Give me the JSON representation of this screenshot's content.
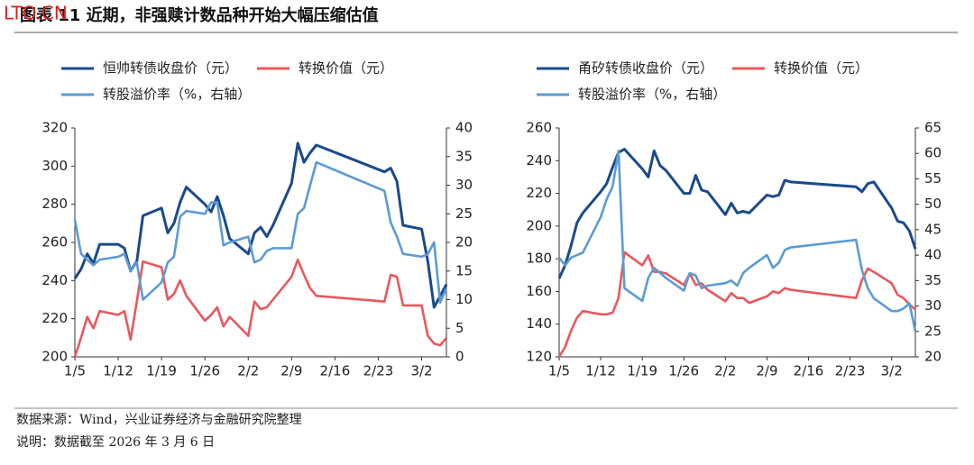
{
  "header": {
    "title": "图表 11  近期，非强赎计数品种开始大幅压缩估值",
    "watermark": "LTO.CN"
  },
  "chart_data": [
    {
      "type": "line",
      "x": [
        "1/5",
        "1/6",
        "1/7",
        "1/8",
        "1/9",
        "1/12",
        "1/13",
        "1/14",
        "1/15",
        "1/16",
        "1/19",
        "1/20",
        "1/21",
        "1/22",
        "1/23",
        "1/26",
        "1/27",
        "1/28",
        "1/29",
        "1/30",
        "2/2",
        "2/3",
        "2/4",
        "2/5",
        "2/6",
        "2/9",
        "2/10",
        "2/11",
        "2/12",
        "2/13",
        "2/24",
        "2/25",
        "2/26",
        "2/27",
        "3/2",
        "3/3",
        "3/4",
        "3/5",
        "3/6"
      ],
      "xlim": [
        "1/5",
        "3/6"
      ],
      "xticks": [
        "1/5",
        "1/12",
        "1/19",
        "1/26",
        "2/2",
        "2/9",
        "2/16",
        "2/23",
        "3/2"
      ],
      "ylim": [
        200,
        320
      ],
      "yticks": [
        200,
        220,
        240,
        260,
        280,
        300,
        320
      ],
      "y2lim": [
        0,
        40
      ],
      "y2ticks": [
        0,
        5,
        10,
        15,
        20,
        25,
        30,
        35,
        40
      ],
      "series": [
        {
          "name": "恒帅转债收盘价（元）",
          "color": "#1a4a8d",
          "values": [
            241,
            246,
            254,
            249,
            259,
            259,
            257,
            245,
            250,
            274,
            278,
            265,
            270,
            281,
            289,
            280,
            276,
            284,
            274,
            262,
            254,
            265,
            268,
            263,
            269,
            291,
            312,
            302,
            307,
            311,
            297,
            299,
            292,
            269,
            267,
            250,
            226,
            232,
            238
          ]
        },
        {
          "name": "转换价值（元）",
          "color": "#e8585d",
          "values": [
            200,
            210,
            221,
            215,
            224,
            222,
            224,
            209,
            229,
            250,
            247,
            230,
            233,
            240,
            232,
            219,
            222,
            226,
            216,
            221,
            211,
            229,
            225,
            226,
            230,
            242,
            251,
            243,
            236,
            232,
            229,
            243,
            242,
            227,
            227,
            211,
            207,
            206,
            210
          ]
        },
        {
          "name": "转股溢价率（%，右轴）",
          "color": "#5b9bd5",
          "axis": "y2",
          "values": [
            24,
            18,
            17,
            16,
            17,
            17.5,
            18,
            15,
            16.5,
            10,
            13,
            16.5,
            17.5,
            24.5,
            25.5,
            25,
            27,
            27,
            19.5,
            20,
            21,
            16.5,
            17,
            18.5,
            19,
            19,
            25,
            26,
            30,
            34,
            29,
            23.5,
            21,
            18,
            17.5,
            18,
            20,
            9.5,
            12
          ]
        }
      ]
    },
    {
      "type": "line",
      "x": [
        "1/5",
        "1/6",
        "1/7",
        "1/8",
        "1/9",
        "1/12",
        "1/13",
        "1/14",
        "1/15",
        "1/16",
        "1/19",
        "1/20",
        "1/21",
        "1/22",
        "1/23",
        "1/26",
        "1/27",
        "1/28",
        "1/29",
        "1/30",
        "2/2",
        "2/3",
        "2/4",
        "2/5",
        "2/6",
        "2/9",
        "2/10",
        "2/11",
        "2/12",
        "2/13",
        "2/24",
        "2/25",
        "2/26",
        "2/27",
        "3/2",
        "3/3",
        "3/4",
        "3/5",
        "3/6"
      ],
      "xlim": [
        "1/5",
        "3/6"
      ],
      "xticks": [
        "1/5",
        "1/12",
        "1/19",
        "1/26",
        "2/2",
        "2/9",
        "2/16",
        "2/23",
        "3/2"
      ],
      "ylim": [
        120,
        260
      ],
      "yticks": [
        120,
        140,
        160,
        180,
        200,
        220,
        240,
        260
      ],
      "y2lim": [
        20,
        65
      ],
      "y2ticks": [
        20,
        25,
        30,
        35,
        40,
        45,
        50,
        55,
        60,
        65
      ],
      "series": [
        {
          "name": "甬矽转债收盘价（元）",
          "color": "#1a4a8d",
          "values": [
            168,
            176,
            188,
            202,
            208,
            221,
            226,
            236,
            245,
            247,
            235,
            230,
            246,
            237,
            234,
            220,
            220,
            231,
            222,
            221,
            207,
            214,
            208,
            209,
            208,
            219,
            218,
            219,
            228,
            227,
            224,
            221,
            226,
            227,
            211,
            203,
            202,
            197,
            186
          ]
        },
        {
          "name": "转换价值（元）",
          "color": "#e8585d",
          "values": [
            120,
            126,
            136,
            144,
            148,
            146,
            146,
            147,
            156,
            184,
            176,
            182,
            172,
            172,
            171,
            164,
            171,
            164,
            165,
            161,
            154,
            159,
            156,
            156,
            153,
            157,
            160,
            159,
            162,
            161,
            156,
            167,
            174,
            172,
            165,
            158,
            156,
            152,
            149
          ]
        },
        {
          "name": "转股溢价率（%，右轴）",
          "color": "#5b9bd5",
          "axis": "y2",
          "values": [
            39.5,
            38,
            39.5,
            40,
            40.5,
            47.5,
            51,
            53.5,
            60.5,
            33.5,
            31,
            35.5,
            37.5,
            36.5,
            35.5,
            33,
            36.5,
            36,
            33.5,
            34,
            34.5,
            35,
            34,
            36.5,
            37.5,
            40,
            37.5,
            38.5,
            41,
            41.5,
            43,
            37,
            33.5,
            31.5,
            29,
            29,
            29.5,
            30.5,
            25
          ]
        }
      ]
    }
  ],
  "footer": {
    "source": "数据来源：Wind，兴业证券经济与金融研究院整理",
    "note": "说明：数据截至 2026 年 3 月 6 日"
  }
}
